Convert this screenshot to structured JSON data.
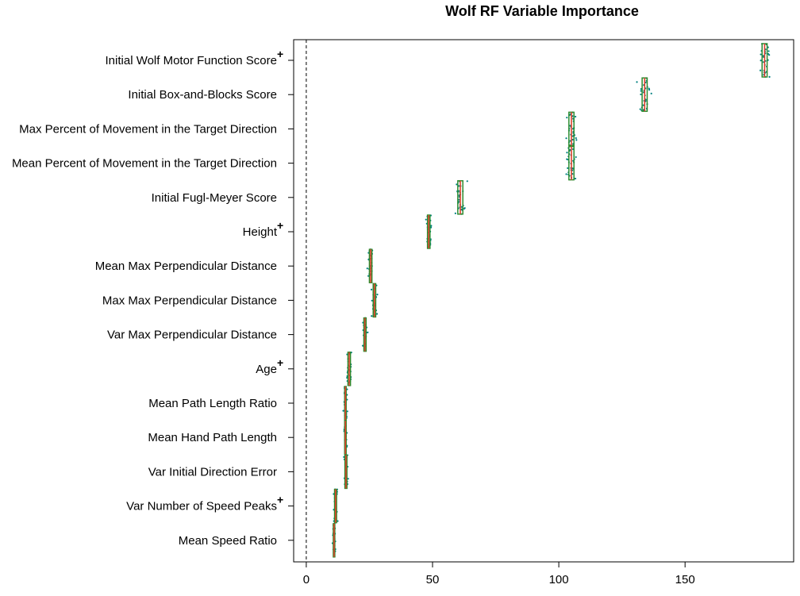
{
  "chart_data": {
    "type": "boxplot",
    "orientation": "horizontal",
    "title": "Wolf RF Variable Importance",
    "xlabel": "",
    "ylabel": "",
    "xlim": [
      -5,
      193
    ],
    "xticks": [
      0,
      50,
      100,
      150
    ],
    "reference_line_x": 0,
    "grid": false,
    "colors": {
      "box": "#2e8b2e",
      "median": "#e0402a",
      "points": "#008080",
      "reference_line": "#000000"
    },
    "variables": [
      {
        "label": "Initial Wolf Motor Function Score",
        "marked": true,
        "min": 178,
        "q1": 180.5,
        "median": 181.5,
        "q3": 182.5,
        "max": 185
      },
      {
        "label": "Initial Box-and-Blocks Score",
        "marked": false,
        "min": 130,
        "q1": 133,
        "median": 134,
        "q3": 135,
        "max": 138
      },
      {
        "label": "Max Percent of Movement in the Target Direction",
        "marked": false,
        "min": 102,
        "q1": 104,
        "median": 105,
        "q3": 106,
        "max": 108
      },
      {
        "label": "Mean Percent of Movement in the Target Direction",
        "marked": false,
        "min": 102,
        "q1": 104,
        "median": 105,
        "q3": 106,
        "max": 108
      },
      {
        "label": "Initial Fugl-Meyer Score",
        "marked": false,
        "min": 58,
        "q1": 60,
        "median": 61,
        "q3": 62,
        "max": 64
      },
      {
        "label": "Height",
        "marked": true,
        "min": 47,
        "q1": 48,
        "median": 48.5,
        "q3": 49,
        "max": 50
      },
      {
        "label": "Mean Max Perpendicular Distance",
        "marked": false,
        "min": 24,
        "q1": 25,
        "median": 25.5,
        "q3": 26,
        "max": 27
      },
      {
        "label": "Max Max Perpendicular Distance",
        "marked": false,
        "min": 25.5,
        "q1": 26.5,
        "median": 27,
        "q3": 27.5,
        "max": 28.5
      },
      {
        "label": "Var Max Perpendicular Distance",
        "marked": false,
        "min": 22,
        "q1": 22.8,
        "median": 23.2,
        "q3": 23.7,
        "max": 24.5
      },
      {
        "label": "Age",
        "marked": true,
        "min": 15.5,
        "q1": 16.5,
        "median": 17,
        "q3": 17.5,
        "max": 18.5
      },
      {
        "label": "Mean Path Length Ratio",
        "marked": false,
        "min": 14.5,
        "q1": 15.2,
        "median": 15.5,
        "q3": 15.8,
        "max": 16.5
      },
      {
        "label": "Mean Hand Path Length",
        "marked": false,
        "min": 14.5,
        "q1": 15.2,
        "median": 15.5,
        "q3": 15.8,
        "max": 16.5
      },
      {
        "label": "Var Initial Direction Error",
        "marked": false,
        "min": 14.5,
        "q1": 15.3,
        "median": 15.7,
        "q3": 16.1,
        "max": 17
      },
      {
        "label": "Var Number of Speed Peaks",
        "marked": true,
        "min": 10.5,
        "q1": 11.2,
        "median": 11.6,
        "q3": 12,
        "max": 12.8
      },
      {
        "label": "Mean Speed Ratio",
        "marked": false,
        "min": 10,
        "q1": 10.7,
        "median": 11,
        "q3": 11.3,
        "max": 12
      }
    ],
    "marker_symbol": "+"
  }
}
